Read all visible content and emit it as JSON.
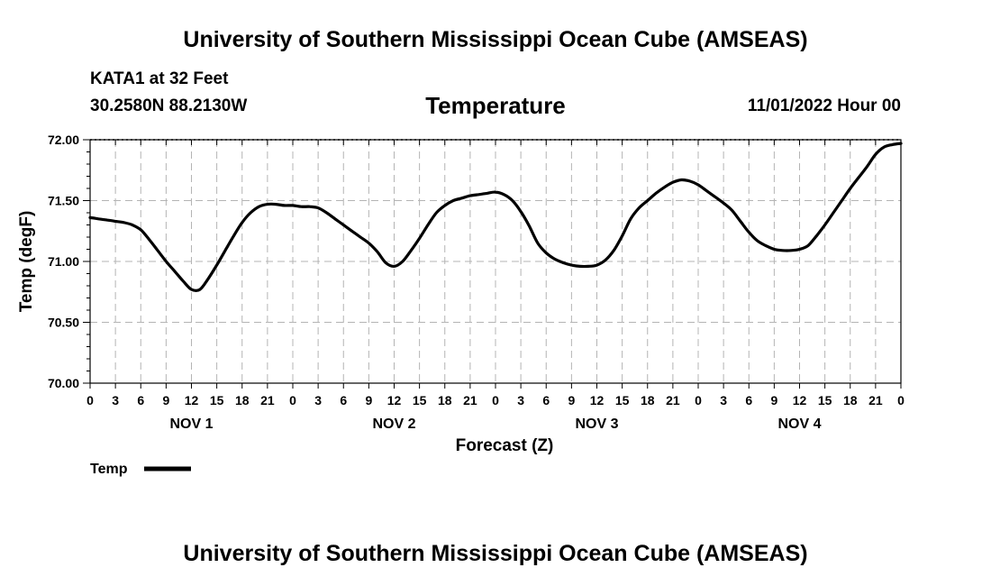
{
  "page": {
    "title_top": "University of Southern Mississippi Ocean Cube (AMSEAS)",
    "title_bottom": "University of Southern Mississippi Ocean Cube (AMSEAS)",
    "station": "KATA1 at 32 Feet",
    "coords": "30.2580N  88.2130W",
    "datetime": "11/01/2022 Hour 00"
  },
  "chart_data": {
    "type": "line",
    "title": "Temperature",
    "xlabel": "Forecast (Z)",
    "ylabel": "Temp (degF)",
    "xlim": [
      0,
      96
    ],
    "ylim": [
      70.0,
      72.0
    ],
    "yticks": [
      "70.00",
      "70.50",
      "71.00",
      "71.50",
      "72.00"
    ],
    "ytick_values": [
      70.0,
      70.5,
      71.0,
      71.5,
      72.0
    ],
    "xtick_labels": [
      "0",
      "3",
      "6",
      "9",
      "12",
      "15",
      "18",
      "21",
      "0",
      "3",
      "6",
      "9",
      "12",
      "15",
      "18",
      "21",
      "0",
      "3",
      "6",
      "9",
      "12",
      "15",
      "18",
      "21",
      "0",
      "3",
      "6",
      "9",
      "12",
      "15",
      "18",
      "21",
      "0"
    ],
    "day_labels": [
      {
        "label": "NOV 1",
        "hour": 12
      },
      {
        "label": "NOV 2",
        "hour": 36
      },
      {
        "label": "NOV 3",
        "hour": 60
      },
      {
        "label": "NOV 4",
        "hour": 84
      }
    ],
    "grid": true,
    "legend": "bottom-left",
    "series": [
      {
        "name": "Temp",
        "color": "#000000",
        "x": [
          0,
          1,
          2,
          3,
          4,
          5,
          6,
          7,
          8,
          9,
          10,
          11,
          12,
          13,
          14,
          15,
          16,
          17,
          18,
          19,
          20,
          21,
          22,
          23,
          24,
          25,
          26,
          27,
          28,
          29,
          30,
          31,
          32,
          33,
          34,
          35,
          36,
          37,
          38,
          39,
          40,
          41,
          42,
          43,
          44,
          45,
          46,
          47,
          48,
          49,
          50,
          51,
          52,
          53,
          54,
          55,
          56,
          57,
          58,
          59,
          60,
          61,
          62,
          63,
          64,
          65,
          66,
          67,
          68,
          69,
          70,
          71,
          72,
          73,
          74,
          75,
          76,
          77,
          78,
          79,
          80,
          81,
          82,
          83,
          84,
          85,
          86,
          87,
          88,
          89,
          90,
          91,
          92,
          93,
          94,
          95,
          96
        ],
        "values": [
          71.36,
          71.35,
          71.34,
          71.33,
          71.32,
          71.3,
          71.26,
          71.18,
          71.09,
          71.0,
          70.92,
          70.84,
          70.77,
          70.77,
          70.86,
          70.97,
          71.09,
          71.21,
          71.32,
          71.4,
          71.45,
          71.47,
          71.47,
          71.46,
          71.46,
          71.45,
          71.45,
          71.44,
          71.4,
          71.35,
          71.3,
          71.25,
          71.2,
          71.15,
          71.08,
          70.99,
          70.96,
          71.0,
          71.09,
          71.19,
          71.3,
          71.4,
          71.46,
          71.5,
          71.52,
          71.54,
          71.55,
          71.56,
          71.57,
          71.55,
          71.5,
          71.41,
          71.29,
          71.15,
          71.07,
          71.02,
          70.99,
          70.97,
          70.96,
          70.96,
          70.97,
          71.01,
          71.09,
          71.21,
          71.35,
          71.44,
          71.5,
          71.56,
          71.61,
          71.65,
          71.67,
          71.66,
          71.63,
          71.58,
          71.53,
          71.48,
          71.42,
          71.33,
          71.24,
          71.17,
          71.13,
          71.1,
          71.09,
          71.09,
          71.1,
          71.13,
          71.21,
          71.3,
          71.4,
          71.5,
          71.6,
          71.69,
          71.78,
          71.88,
          71.94,
          71.96,
          71.97
        ]
      }
    ]
  }
}
